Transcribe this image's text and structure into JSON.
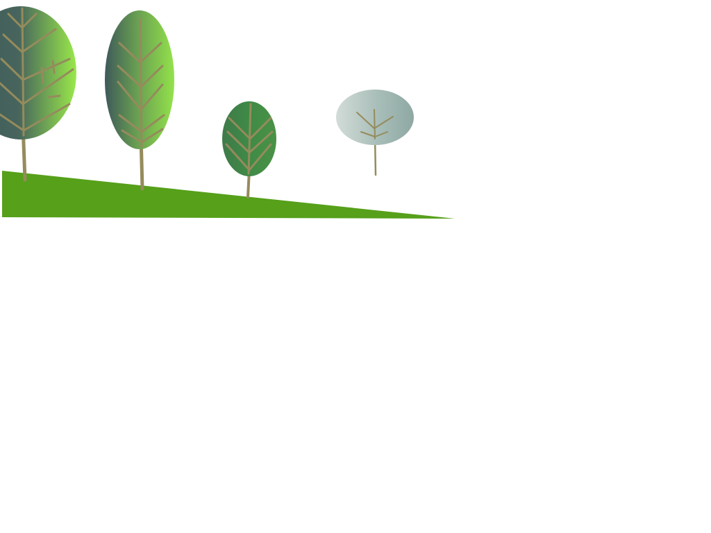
{
  "scene": {
    "background": "#ffffff",
    "ground": {
      "color": "#56a01a"
    },
    "trunk_color": "#958b5c",
    "trees": [
      {
        "name": "tree-1",
        "gradient": [
          "#3e5a5a",
          "#47655d",
          "#99e84a"
        ]
      },
      {
        "name": "tree-2",
        "gradient": [
          "#3e5a5a",
          "#689d52",
          "#93e24b"
        ]
      },
      {
        "name": "tree-3",
        "gradient": [
          "#3f7a4a",
          "#3f8a46",
          "#4a9246"
        ]
      },
      {
        "name": "tree-4",
        "gradient": [
          "#d2dcd8",
          "#a7bdb8",
          "#8fa8a3"
        ]
      }
    ]
  }
}
